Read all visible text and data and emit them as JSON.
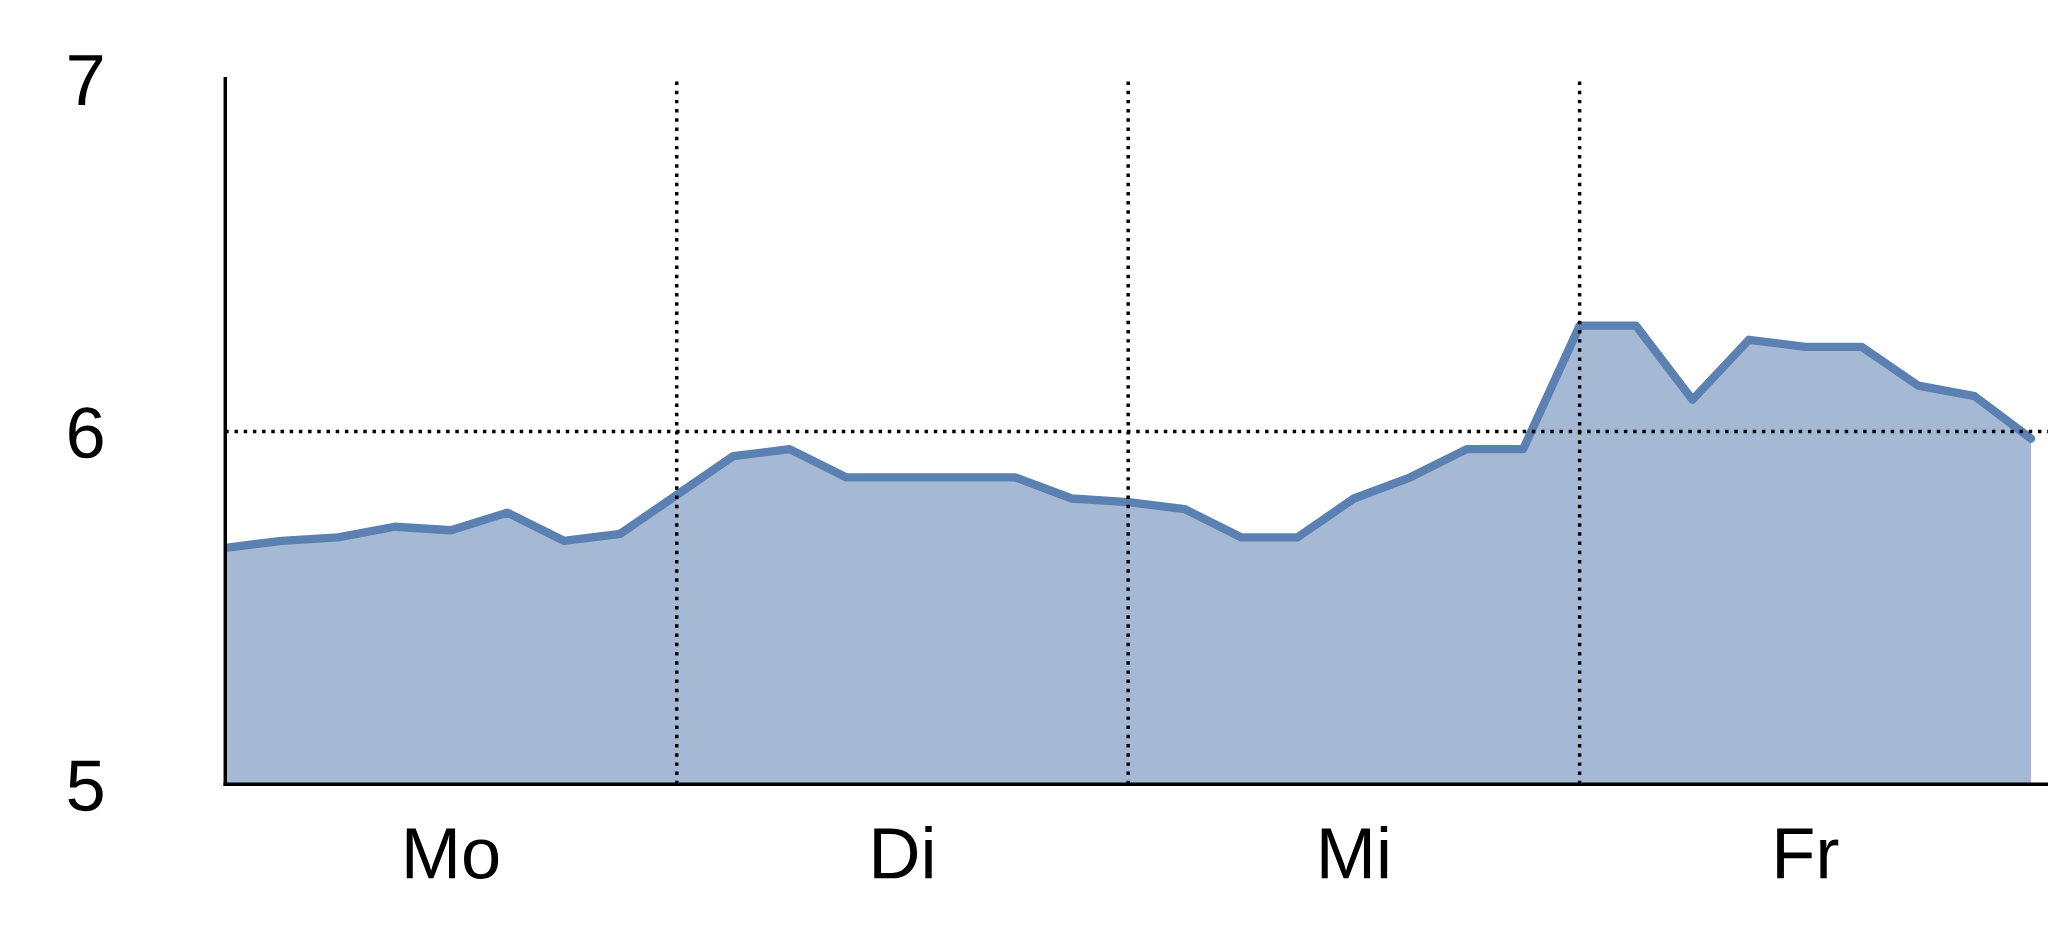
{
  "chart_data": {
    "type": "area",
    "categories": [
      null,
      null,
      null,
      null,
      "Mo",
      null,
      null,
      null,
      null,
      null,
      null,
      null,
      "Di",
      null,
      null,
      null,
      null,
      null,
      null,
      null,
      "Mi",
      null,
      null,
      null,
      null,
      null,
      null,
      null,
      "Fr",
      null,
      null,
      null,
      null
    ],
    "series": [
      {
        "color": "#5b80b2",
        "values": [
          5.67,
          5.69,
          5.7,
          5.73,
          5.72,
          5.77,
          5.69,
          5.71,
          5.82,
          5.93,
          5.95,
          5.87,
          5.87,
          5.87,
          5.87,
          5.81,
          5.8,
          5.78,
          5.7,
          5.7,
          5.81,
          5.87,
          5.95,
          5.95,
          6.3,
          6.3,
          6.09,
          6.26,
          6.24,
          6.24,
          6.13,
          6.1,
          5.98
        ]
      }
    ],
    "ylim": [
      5,
      7
    ],
    "yticks": [
      5,
      6,
      7
    ],
    "ref_lines": [
      {
        "axis": "y",
        "value": 6,
        "color": "#000000",
        "line_style": "dotted"
      }
    ],
    "grid": "x",
    "legend": false
  }
}
